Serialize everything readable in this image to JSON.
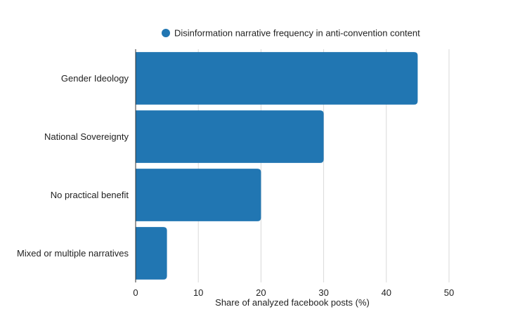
{
  "chart_data": {
    "type": "bar",
    "orientation": "horizontal",
    "categories": [
      "Gender Ideology",
      "National Sovereignty",
      "No practical benefit",
      "Mixed or multiple narratives"
    ],
    "series": [
      {
        "name": "Disinformation narrative frequency in anti-convention content",
        "values": [
          45,
          30,
          20,
          5
        ],
        "color": "#2176b2"
      }
    ],
    "xlabel": "Share of analyzed facebook posts (%)",
    "ylabel": "",
    "xlim": [
      0,
      50
    ],
    "xticks": [
      0,
      10,
      20,
      30,
      40,
      50
    ],
    "grid": true,
    "legend_position": "top"
  }
}
